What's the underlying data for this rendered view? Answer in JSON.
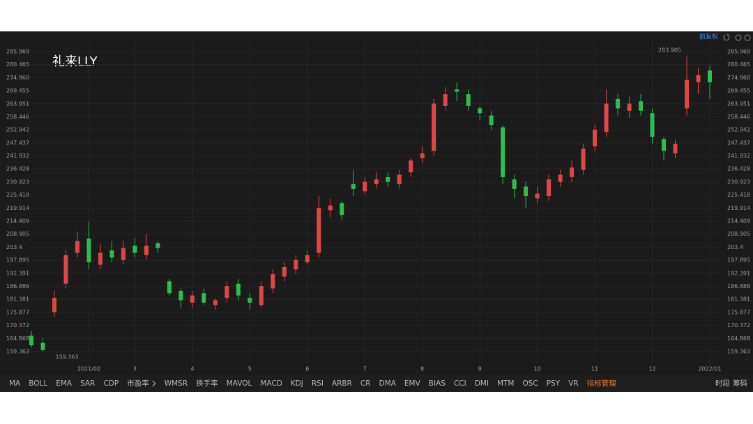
{
  "chart_data": {
    "type": "candlestick",
    "title": "礼来LLY",
    "adjust": "前复权",
    "up_color": "#e04646",
    "down_color": "#2dbd4e",
    "grid": true,
    "ylim": [
      154.65,
      291.56
    ],
    "yticks": [
      285.969,
      280.465,
      {
        "value": 274.96,
        "label": "274.960"
      },
      269.455,
      263.951,
      258.446,
      252.942,
      247.437,
      241.932,
      236.428,
      230.923,
      225.418,
      219.914,
      214.409,
      208.905,
      203.4,
      197.895,
      192.391,
      186.886,
      181.381,
      175.877,
      170.372,
      164.868,
      159.363
    ],
    "xticks": [
      {
        "value": 5,
        "label": "2021/02"
      },
      {
        "value": 9,
        "label": "3"
      },
      {
        "value": 14,
        "label": "4"
      },
      {
        "value": 19,
        "label": "5"
      },
      {
        "value": 24,
        "label": "6"
      },
      {
        "value": 29,
        "label": "7"
      },
      {
        "value": 34,
        "label": "8"
      },
      {
        "value": 39,
        "label": "9"
      },
      {
        "value": 44,
        "label": "10"
      },
      {
        "value": 49,
        "label": "11"
      },
      {
        "value": 54,
        "label": "12"
      },
      {
        "value": 59,
        "label": "2022/01"
      }
    ],
    "open": [
      166,
      163,
      176,
      188,
      201,
      207,
      196,
      202,
      198,
      204,
      200,
      205,
      189,
      185,
      180,
      184,
      179,
      182,
      188,
      182,
      179,
      186,
      191,
      194,
      197,
      201,
      219,
      222,
      230,
      227,
      230,
      233,
      230,
      235,
      241,
      244,
      263,
      270,
      268,
      262,
      259,
      254,
      232,
      229,
      224,
      225,
      231,
      233,
      236,
      246,
      252,
      266,
      261,
      265,
      260,
      249,
      243,
      262,
      273,
      278
    ],
    "high": [
      168,
      165,
      185,
      202,
      210,
      214,
      205,
      206,
      206,
      207,
      209,
      206,
      190,
      186,
      185,
      186,
      182,
      189,
      190,
      184,
      189,
      194,
      197,
      200,
      202,
      225,
      224,
      223,
      236,
      233,
      235,
      235,
      236,
      241,
      246,
      266,
      271,
      273,
      270,
      263,
      261,
      255,
      234,
      231,
      229,
      234,
      236,
      240,
      247,
      255,
      270,
      268,
      267,
      268,
      262,
      250,
      249,
      283.905,
      279,
      280
    ],
    "low": [
      161,
      159.363,
      174,
      186,
      199,
      194,
      194,
      197,
      196,
      199,
      198,
      201,
      183,
      178,
      178,
      179,
      177,
      180,
      181,
      177,
      178,
      184,
      189,
      192,
      196,
      199,
      216,
      215,
      225,
      226,
      228,
      229,
      228,
      233,
      239,
      242,
      261,
      265,
      261,
      257,
      253,
      230,
      224,
      220,
      222,
      223,
      229,
      231,
      234,
      244,
      250,
      259,
      258,
      259,
      247,
      240,
      241,
      259,
      268,
      266
    ],
    "close": [
      162,
      160,
      182,
      200,
      206,
      197,
      201,
      199,
      203,
      201,
      204,
      203,
      184,
      181,
      183,
      180,
      181,
      187,
      183,
      180,
      187,
      192,
      195,
      198,
      200,
      220,
      221,
      217,
      228,
      231,
      232,
      231,
      234,
      240,
      243,
      264,
      268,
      269,
      263,
      260,
      255,
      233,
      228,
      225,
      226,
      232,
      234,
      237,
      245,
      253,
      264,
      262,
      264,
      261,
      250,
      244,
      247,
      274,
      276,
      273
    ],
    "annotations": [
      "283.905",
      "159.363"
    ],
    "toolbar": [
      "MA",
      "BOLL",
      "EMA",
      "SAR",
      "CDP",
      "市盈率",
      "WMSR",
      "换手率",
      "MAVOL",
      "MACD",
      "KDJ",
      "RSI",
      "ARBR",
      "CR",
      "DMA",
      "EMV",
      "BIAS",
      "CCI",
      "DMI",
      "MTM",
      "OSC",
      "PSY",
      "VR",
      "指标管理"
    ],
    "toolbar_right": [
      "时段",
      "筹码"
    ]
  }
}
